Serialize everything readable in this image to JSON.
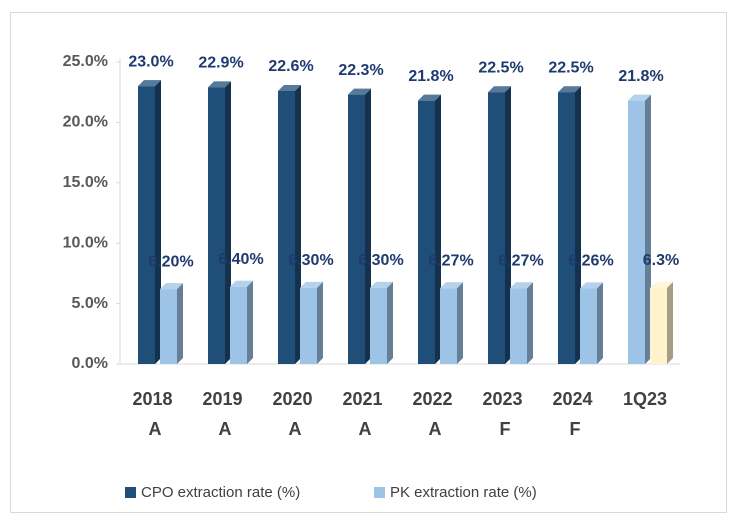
{
  "chart_data": {
    "type": "bar3d",
    "categories": [
      "2018 A",
      "2019 A",
      "2020 A",
      "2021 A",
      "2022 A",
      "2023 F",
      "2024 F",
      "1Q23"
    ],
    "series": [
      {
        "name": "CPO extraction rate (%)",
        "color": "#1f4e79",
        "colors": [
          "#1f4e79",
          "#1f4e79",
          "#1f4e79",
          "#1f4e79",
          "#1f4e79",
          "#1f4e79",
          "#1f4e79",
          "#9dc3e6"
        ],
        "values": [
          23.0,
          22.9,
          22.6,
          22.3,
          21.8,
          22.5,
          22.5,
          21.8
        ],
        "value_labels": [
          "23.0%",
          "22.9%",
          "22.6%",
          "22.3%",
          "21.8%",
          "22.5%",
          "22.5%",
          "21.8%"
        ]
      },
      {
        "name": "PK extraction rate (%)",
        "color": "#9dc3e6",
        "colors": [
          "#9dc3e6",
          "#9dc3e6",
          "#9dc3e6",
          "#9dc3e6",
          "#9dc3e6",
          "#9dc3e6",
          "#9dc3e6",
          "#fff2cc"
        ],
        "values": [
          6.2,
          6.4,
          6.3,
          6.3,
          6.27,
          6.27,
          6.26,
          6.3
        ],
        "value_labels": [
          "6.20%",
          "6.40%",
          "6.30%",
          "6.30%",
          "6.27%",
          "6.27%",
          "6.26%",
          "6.3%"
        ]
      }
    ],
    "ylim": [
      0,
      25
    ],
    "yticks": [
      {
        "value": 0,
        "label": "0.0%"
      },
      {
        "value": 5,
        "label": "5.0%"
      },
      {
        "value": 10,
        "label": "10.0%"
      },
      {
        "value": 15,
        "label": "15.0%"
      },
      {
        "value": 20,
        "label": "20.0%"
      },
      {
        "value": 25,
        "label": "25.0%"
      }
    ],
    "legend": "bottom"
  }
}
